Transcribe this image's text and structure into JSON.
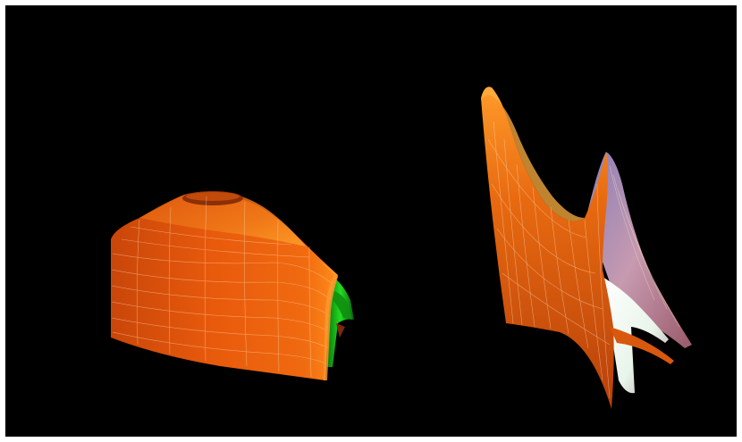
{
  "scene": {
    "description_visible_text": "",
    "background_color": "#000000",
    "frame_color": "#ffffff",
    "surfaces": [
      {
        "name": "dome-surface",
        "base_color": "#e85a0c",
        "highlight_color": "#ff8c1a",
        "inner_color": "#1fbf1f",
        "mesh_color": "#ffd9a8"
      },
      {
        "name": "saddle-surface",
        "base_color": "#e8620e",
        "highlight_color": "#ffa030",
        "back_color": "#b88aa6",
        "inner_color": "#f3fff6",
        "mesh_color": "#ffe2c2"
      }
    ]
  }
}
